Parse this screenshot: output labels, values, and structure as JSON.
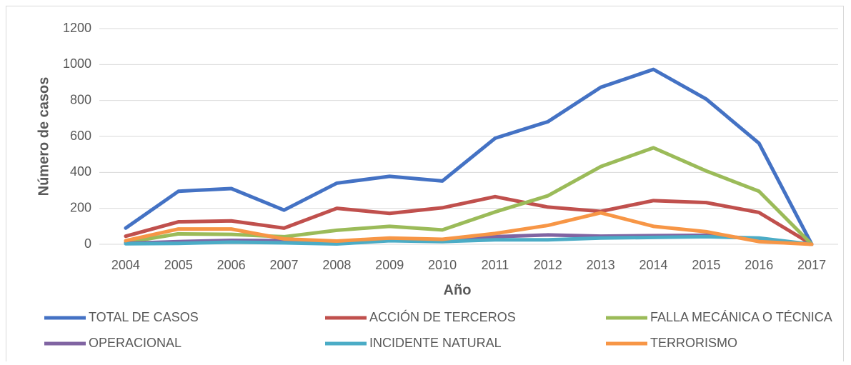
{
  "chart_data": {
    "type": "line",
    "x_label": "Año",
    "y_label": "Número de casos",
    "categories": [
      "2004",
      "2005",
      "2006",
      "2007",
      "2008",
      "2009",
      "2010",
      "2011",
      "2012",
      "2013",
      "2014",
      "2015",
      "2016",
      "2017"
    ],
    "series": [
      {
        "name": "TOTAL DE CASOS",
        "color": "#4472c4",
        "values": [
          90,
          295,
          310,
          190,
          340,
          378,
          352,
          590,
          682,
          873,
          973,
          808,
          562,
          0
        ]
      },
      {
        "name": "ACCIÓN DE TERCEROS",
        "color": "#c0504d",
        "values": [
          45,
          125,
          130,
          90,
          200,
          172,
          203,
          265,
          207,
          183,
          243,
          232,
          177,
          0
        ]
      },
      {
        "name": "FALLA MECÁNICA O TÉCNICA",
        "color": "#9bbb59",
        "values": [
          10,
          58,
          55,
          42,
          78,
          100,
          80,
          180,
          270,
          432,
          537,
          408,
          295,
          0
        ]
      },
      {
        "name": "OPERACIONAL",
        "color": "#8064a2",
        "values": [
          5,
          15,
          22,
          20,
          10,
          28,
          20,
          42,
          52,
          45,
          48,
          50,
          30,
          0
        ]
      },
      {
        "name": "INCIDENTE NATURAL",
        "color": "#4bacc6",
        "values": [
          3,
          5,
          12,
          8,
          2,
          20,
          15,
          25,
          25,
          35,
          38,
          42,
          35,
          0
        ]
      },
      {
        "name": "TERRORISMO",
        "color": "#f79646",
        "values": [
          20,
          85,
          85,
          30,
          18,
          35,
          28,
          60,
          105,
          175,
          100,
          70,
          15,
          0
        ]
      }
    ],
    "ylim": [
      0,
      1200
    ],
    "yticks": [
      0,
      200,
      400,
      600,
      800,
      1000,
      1200
    ],
    "grid": true,
    "legend": "bottom"
  }
}
